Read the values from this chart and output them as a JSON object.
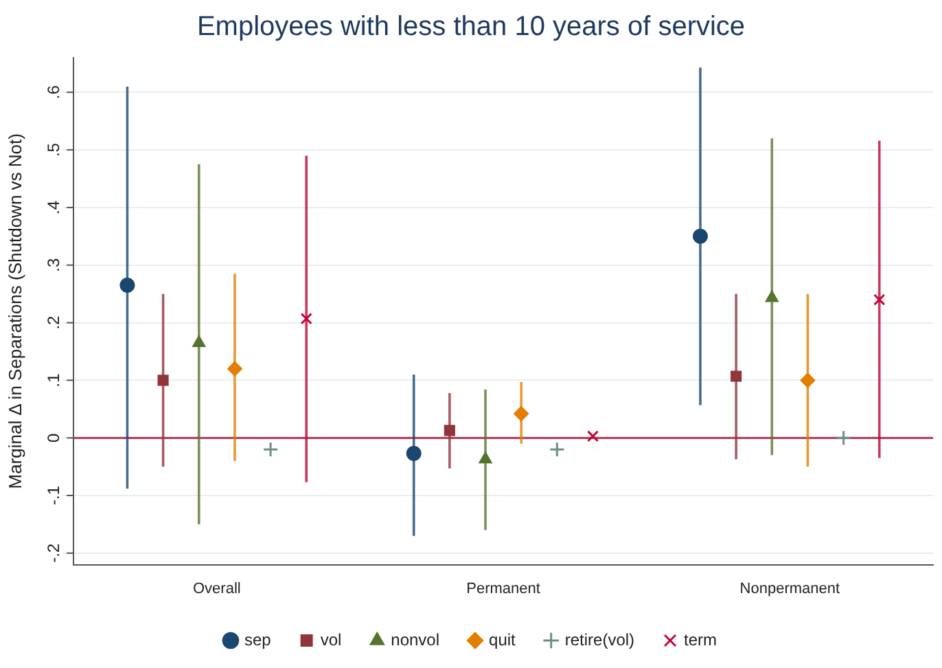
{
  "chart_data": {
    "type": "scatter",
    "title": "Employees with less than 10 years of service",
    "ylabel": "Marginal Δ in Separations (Shutdown vs Not)",
    "categories": [
      "Overall",
      "Permanent",
      "Nonpermanent"
    ],
    "series": [
      {
        "name": "sep",
        "color": "#1a476f",
        "marker": "circle",
        "values": [
          0.265,
          -0.027,
          0.35
        ],
        "errors": [
          [
            -0.088,
            0.61
          ],
          [
            -0.17,
            0.11
          ],
          [
            0.057,
            0.643
          ]
        ]
      },
      {
        "name": "vol",
        "color": "#90353b",
        "marker": "square",
        "values": [
          0.1,
          0.013,
          0.107
        ],
        "errors": [
          [
            -0.05,
            0.25
          ],
          [
            -0.053,
            0.078
          ],
          [
            -0.037,
            0.25
          ]
        ]
      },
      {
        "name": "nonvol",
        "color": "#55752f",
        "marker": "triangle",
        "values": [
          0.165,
          -0.037,
          0.243
        ],
        "errors": [
          [
            -0.15,
            0.475
          ],
          [
            -0.16,
            0.084
          ],
          [
            -0.03,
            0.52
          ]
        ]
      },
      {
        "name": "quit",
        "color": "#e37e00",
        "marker": "diamond",
        "values": [
          0.12,
          0.042,
          0.1
        ],
        "errors": [
          [
            -0.04,
            0.285
          ],
          [
            -0.01,
            0.097
          ],
          [
            -0.05,
            0.25
          ]
        ]
      },
      {
        "name": "retire(vol)",
        "color": "#6e8e84",
        "marker": "cross",
        "values": [
          -0.02,
          -0.02,
          0
        ],
        "errors": [
          null,
          null,
          null
        ]
      },
      {
        "name": "term",
        "color": "#c10534",
        "marker": "x",
        "values": [
          0.207,
          0.003,
          0.24
        ],
        "errors": [
          [
            -0.077,
            0.49
          ],
          null,
          [
            -0.035,
            0.516
          ]
        ]
      }
    ],
    "ylim": [
      -0.22,
      0.66
    ],
    "yticks": [
      {
        "value": -0.2,
        "label": "-.2"
      },
      {
        "value": -0.1,
        "label": "-.1"
      },
      0,
      {
        "value": 0.1,
        "label": ".1"
      },
      {
        "value": 0.2,
        "label": ".2"
      },
      {
        "value": 0.3,
        "label": ".3"
      },
      {
        "value": 0.4,
        "label": ".4"
      },
      {
        "value": 0.5,
        "label": ".5"
      },
      {
        "value": 0.6,
        "label": ".6"
      }
    ],
    "ref_lines": [
      {
        "axis": "y",
        "value": 0,
        "color": "#a8385a"
      }
    ],
    "grid": "y",
    "legend": "bottom"
  }
}
